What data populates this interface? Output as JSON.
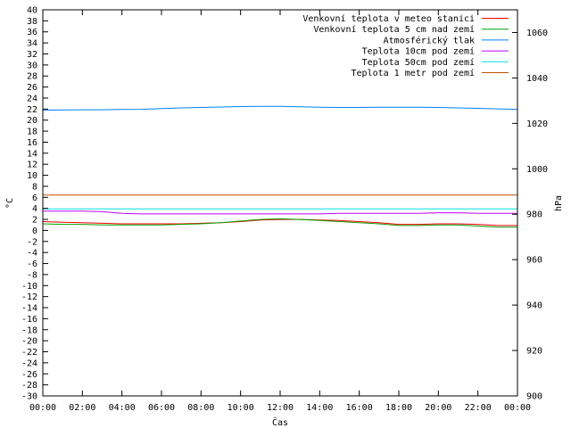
{
  "chart_data": {
    "type": "line",
    "xlabel": "Čas",
    "ylabel": "°C",
    "y2label": "hPa",
    "x_ticks": [
      "00:00",
      "02:00",
      "04:00",
      "06:00",
      "08:00",
      "10:00",
      "12:00",
      "14:00",
      "16:00",
      "18:00",
      "20:00",
      "22:00",
      "00:00"
    ],
    "x": [
      0,
      1,
      2,
      3,
      4,
      5,
      6,
      7,
      8,
      9,
      10,
      11,
      12,
      13,
      14,
      15,
      16,
      17,
      18,
      19,
      20,
      21,
      22,
      23,
      24
    ],
    "ylim": [
      -30,
      40
    ],
    "y_ticks": [
      40,
      38,
      36,
      34,
      32,
      30,
      28,
      26,
      24,
      22,
      20,
      18,
      16,
      14,
      12,
      10,
      8,
      6,
      4,
      2,
      0,
      -2,
      -4,
      -6,
      -8,
      -10,
      -12,
      -14,
      -16,
      -18,
      -20,
      -22,
      -24,
      -26,
      -28,
      -30
    ],
    "y2lim": [
      900,
      1070
    ],
    "y2_ticks": [
      1060,
      1040,
      1020,
      1000,
      980,
      960,
      940,
      920,
      900
    ],
    "grid": false,
    "legend_position": "top-right",
    "series": [
      {
        "name": "Venkovní teplota v meteo stanici",
        "color": "#ff0000",
        "axis": "left",
        "values": [
          1.6,
          1.5,
          1.4,
          1.3,
          1.2,
          1.2,
          1.2,
          1.2,
          1.3,
          1.4,
          1.6,
          1.9,
          2.0,
          2.0,
          1.9,
          1.8,
          1.6,
          1.4,
          1.1,
          1.1,
          1.2,
          1.2,
          1.1,
          0.9,
          0.9
        ]
      },
      {
        "name": "Venkovní teplota 5 cm nad zemí",
        "color": "#00a000",
        "axis": "left",
        "values": [
          1.2,
          1.1,
          1.1,
          1.0,
          1.0,
          1.0,
          1.0,
          1.1,
          1.2,
          1.4,
          1.7,
          2.0,
          2.1,
          2.0,
          1.8,
          1.6,
          1.4,
          1.2,
          0.9,
          0.9,
          1.0,
          1.0,
          0.8,
          0.6,
          0.6
        ]
      },
      {
        "name": "Atmosférický tlak",
        "color": "#0080ff",
        "axis": "right",
        "values": [
          1025.8,
          1025.9,
          1026.0,
          1026.0,
          1026.1,
          1026.2,
          1026.5,
          1026.8,
          1027.0,
          1027.2,
          1027.4,
          1027.5,
          1027.5,
          1027.3,
          1027.1,
          1027.0,
          1027.0,
          1027.1,
          1027.1,
          1027.1,
          1027.0,
          1026.8,
          1026.6,
          1026.4,
          1026.2
        ]
      },
      {
        "name": "Teplota 10cm pod zemí",
        "color": "#c000ff",
        "axis": "left",
        "values": [
          3.5,
          3.5,
          3.5,
          3.4,
          3.1,
          3.0,
          3.0,
          3.0,
          3.0,
          3.0,
          3.0,
          3.0,
          3.0,
          3.0,
          3.0,
          3.1,
          3.1,
          3.1,
          3.1,
          3.1,
          3.2,
          3.2,
          3.1,
          3.1,
          3.1
        ]
      },
      {
        "name": "Teplota 50cm pod zemí",
        "color": "#00e0e0",
        "axis": "left",
        "values": [
          3.9,
          3.9,
          3.9,
          3.9,
          3.9,
          3.9,
          3.9,
          3.9,
          3.9,
          3.9,
          3.9,
          3.9,
          3.9,
          3.9,
          3.9,
          3.9,
          3.9,
          3.9,
          3.9,
          3.9,
          3.9,
          3.9,
          3.9,
          3.9,
          3.9
        ]
      },
      {
        "name": "Teplota 1 metr pod zemí",
        "color": "#c05000",
        "axis": "left",
        "values": [
          6.4,
          6.4,
          6.4,
          6.4,
          6.4,
          6.4,
          6.4,
          6.4,
          6.4,
          6.4,
          6.4,
          6.4,
          6.4,
          6.4,
          6.4,
          6.4,
          6.4,
          6.4,
          6.4,
          6.4,
          6.4,
          6.4,
          6.4,
          6.4,
          6.4
        ]
      }
    ]
  }
}
